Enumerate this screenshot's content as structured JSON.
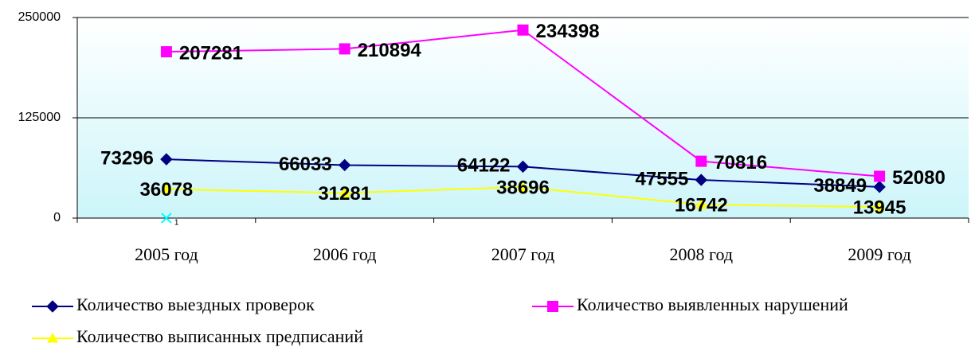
{
  "chart_data": {
    "type": "line",
    "categories": [
      "2005 год",
      "2006 год",
      "2007 год",
      "2008 год",
      "2009 год"
    ],
    "series": [
      {
        "name": "Количество выездных проверок",
        "color": "#000080",
        "marker": "diamond",
        "values": [
          73296,
          66033,
          64122,
          47555,
          38849
        ]
      },
      {
        "name": "Количество выявленных нарушений",
        "color": "#ff00ff",
        "marker": "square",
        "values": [
          207281,
          210894,
          234398,
          70816,
          52080
        ]
      },
      {
        "name": "Количество выписанных предписаний",
        "color": "#ffff00",
        "marker": "triangle",
        "values": [
          36078,
          31281,
          38696,
          16742,
          13945
        ]
      },
      {
        "color": "#00ffff",
        "marker": "x",
        "values": [
          1,
          null,
          null,
          null,
          null
        ]
      }
    ],
    "ylim": [
      0,
      250000
    ],
    "yticks": [
      0,
      125000,
      250000
    ],
    "grid": true
  }
}
